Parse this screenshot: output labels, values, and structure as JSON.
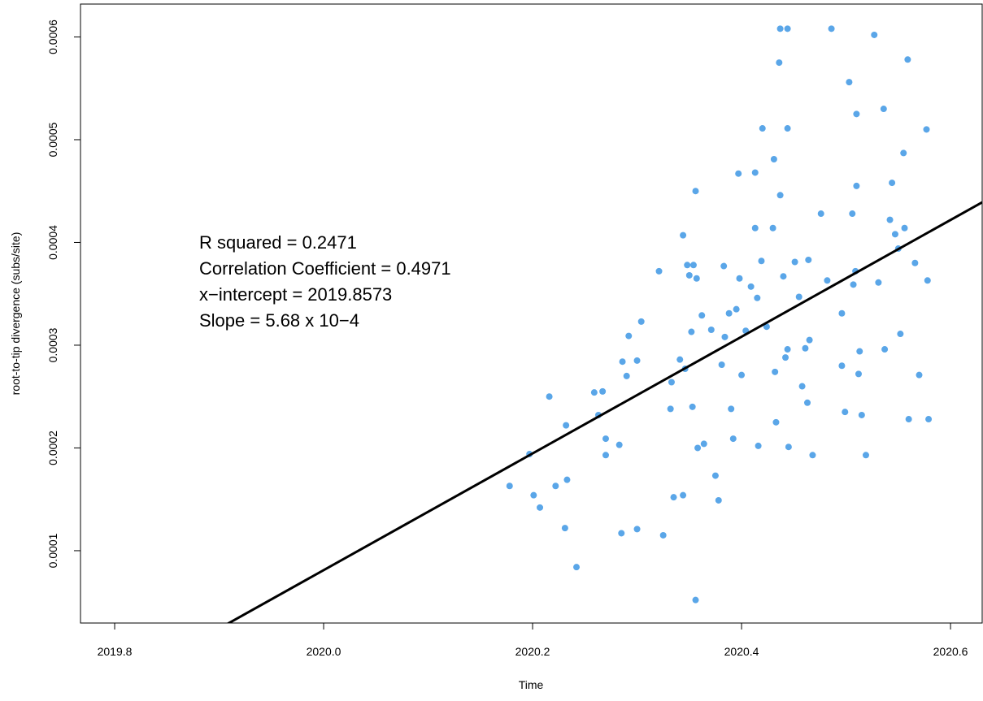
{
  "chart_data": {
    "type": "scatter",
    "x_label": "Time",
    "y_label": "root-to-tip divergence (subs/site)",
    "annotations": [
      "R squared = 0.2471",
      "Correlation Coefficient = 0.4971",
      "x−intercept = 2019.8573",
      "Slope = 5.68 x 10−4"
    ],
    "trendline": {
      "slope": 0.000568,
      "x_intercept": 2019.8573,
      "color": "#000000"
    },
    "xlim": [
      2019.7673,
      2020.6303
    ],
    "ylim": [
      2.96e-05,
      0.000632
    ],
    "xticks": [
      2019.8,
      {
        "value": 2020,
        "label": "2020.0"
      },
      2020.2,
      2020.4,
      2020.6
    ],
    "yticks": [
      0.0001,
      0.0002,
      0.0003,
      0.0004,
      0.0005,
      0.0006
    ],
    "series": [
      {
        "color": "#5aa6e8",
        "x": [
          2020.178,
          2020.197,
          2020.201,
          2020.207,
          2020.216,
          2020.222,
          2020.232,
          2020.233,
          2020.242,
          2020.231,
          2020.259,
          2020.263,
          2020.267,
          2020.27,
          2020.27,
          2020.283,
          2020.285,
          2020.286,
          2020.29,
          2020.292,
          2020.3,
          2020.3,
          2020.304,
          2020.321,
          2020.325,
          2020.332,
          2020.333,
          2020.335,
          2020.341,
          2020.344,
          2020.344,
          2020.346,
          2020.348,
          2020.35,
          2020.352,
          2020.353,
          2020.354,
          2020.356,
          2020.356,
          2020.357,
          2020.358,
          2020.362,
          2020.364,
          2020.371,
          2020.375,
          2020.378,
          2020.381,
          2020.383,
          2020.384,
          2020.388,
          2020.39,
          2020.392,
          2020.395,
          2020.397,
          2020.398,
          2020.4,
          2020.404,
          2020.409,
          2020.413,
          2020.413,
          2020.415,
          2020.416,
          2020.419,
          2020.42,
          2020.424,
          2020.43,
          2020.431,
          2020.432,
          2020.433,
          2020.437,
          2020.44,
          2020.442,
          2020.437,
          2020.436,
          2020.444,
          2020.444,
          2020.445,
          2020.451,
          2020.455,
          2020.458,
          2020.461,
          2020.463,
          2020.465,
          2020.468,
          2020.476,
          2020.482,
          2020.486,
          2020.496,
          2020.499,
          2020.503,
          2020.506,
          2020.507,
          2020.51,
          2020.51,
          2020.513,
          2020.515,
          2020.519,
          2020.527,
          2020.531,
          2020.536,
          2020.537,
          2020.542,
          2020.544,
          2020.547,
          2020.55,
          2020.552,
          2020.556,
          2020.555,
          2020.559,
          2020.56,
          2020.577,
          2020.578,
          2020.579,
          2020.566,
          2020.57,
          2020.512,
          2020.509,
          2020.496,
          2020.464,
          2020.444
        ],
        "values": [
          0.000163,
          0.000194,
          0.000154,
          0.000142,
          0.00025,
          0.000163,
          0.000222,
          0.000169,
          8.4e-05,
          0.000122,
          0.000254,
          0.000232,
          0.000255,
          0.000209,
          0.000193,
          0.000203,
          0.000117,
          0.000284,
          0.00027,
          0.000309,
          0.000121,
          0.000285,
          0.000323,
          0.000372,
          0.000115,
          0.000238,
          0.000264,
          0.000152,
          0.000286,
          0.000407,
          0.000154,
          0.000277,
          0.000378,
          0.000368,
          0.000313,
          0.00024,
          0.000378,
          5.2e-05,
          0.00045,
          0.000365,
          0.0002,
          0.000329,
          0.000204,
          0.000315,
          0.000173,
          0.000149,
          0.000281,
          0.000377,
          0.000308,
          0.000331,
          0.000238,
          0.000209,
          0.000335,
          0.000467,
          0.000365,
          0.000271,
          0.000314,
          0.000357,
          0.000468,
          0.000414,
          0.000346,
          0.000202,
          0.000382,
          0.000511,
          0.000318,
          0.000414,
          0.000481,
          0.000274,
          0.000225,
          0.000446,
          0.000367,
          0.000288,
          0.000608,
          0.000575,
          0.000608,
          0.000511,
          0.000201,
          0.000381,
          0.000347,
          0.00026,
          0.000297,
          0.000244,
          0.000305,
          0.000193,
          0.000428,
          0.000363,
          0.000608,
          0.00028,
          0.000235,
          0.000556,
          0.000428,
          0.000359,
          0.000455,
          0.000525,
          0.000294,
          0.000232,
          0.000193,
          0.000602,
          0.000361,
          0.00053,
          0.000296,
          0.000422,
          0.000458,
          0.000408,
          0.000394,
          0.000311,
          0.000414,
          0.000487,
          0.000578,
          0.000228,
          0.00051,
          0.000363,
          0.000228,
          0.00038,
          0.000271,
          0.000272,
          0.000372,
          0.000331,
          0.000383,
          0.000296
        ]
      }
    ]
  }
}
